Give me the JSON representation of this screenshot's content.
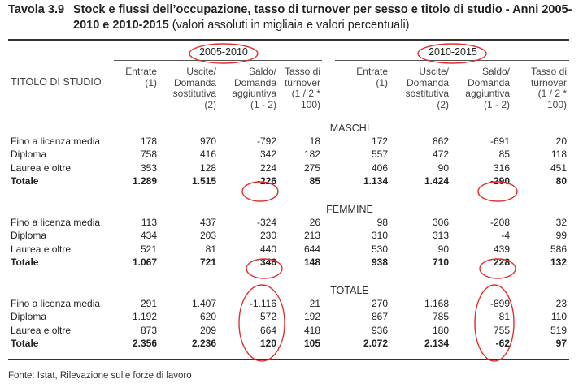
{
  "title": {
    "label": "Tavola 3.9",
    "text_bold": "Stock e flussi dell’occupazione, tasso di turnover per sesso e titolo di studio - Anni 2005-2010 e 2010-2015",
    "text_normal": "(valori assoluti in migliaia e valori percentuali)"
  },
  "header": {
    "row_label": "TITOLO DI STUDIO",
    "period1": "2005-2010",
    "period2": "2010-2015",
    "columns": [
      [
        "Entrate",
        "(1)"
      ],
      [
        "Uscite/",
        "Domanda",
        "sostitutiva",
        "(2)"
      ],
      [
        "Saldo/",
        "Domanda",
        "aggiuntiva",
        "(1 - 2)"
      ],
      [
        "Tasso di",
        "turnover",
        "(1 / 2 *",
        "100)"
      ]
    ],
    "columns2": [
      [
        "Entrate",
        "(1)"
      ],
      [
        "Uscite/",
        "Domanda",
        "sostitutiva",
        "(2)"
      ],
      [
        "Saldo/",
        "Domanda",
        "aggiuntiva",
        "(1 - 2)"
      ],
      [
        "Tasso di",
        "turnover",
        "(1 / 2 *",
        "100)"
      ]
    ]
  },
  "sections": [
    {
      "name": "MASCHI",
      "rows": [
        {
          "label": "Fino a licenza media",
          "values": [
            "178",
            "970",
            "-792",
            "18",
            "172",
            "862",
            "-691",
            "20"
          ],
          "bold": false
        },
        {
          "label": "Diploma",
          "values": [
            "758",
            "416",
            "342",
            "182",
            "557",
            "472",
            "85",
            "118"
          ],
          "bold": false
        },
        {
          "label": "Laurea e oltre",
          "values": [
            "353",
            "128",
            "224",
            "275",
            "406",
            "90",
            "316",
            "451"
          ],
          "bold": false
        },
        {
          "label": "Totale",
          "values": [
            "1.289",
            "1.515",
            "-226",
            "85",
            "1.134",
            "1.424",
            "-290",
            "80"
          ],
          "bold": true
        }
      ]
    },
    {
      "name": "FEMMINE",
      "rows": [
        {
          "label": "Fino a licenza media",
          "values": [
            "113",
            "437",
            "-324",
            "26",
            "98",
            "306",
            "-208",
            "32"
          ],
          "bold": false
        },
        {
          "label": "Diploma",
          "values": [
            "434",
            "203",
            "230",
            "213",
            "310",
            "313",
            "-4",
            "99"
          ],
          "bold": false
        },
        {
          "label": "Laurea e oltre",
          "values": [
            "521",
            "81",
            "440",
            "644",
            "530",
            "90",
            "439",
            "586"
          ],
          "bold": false
        },
        {
          "label": "Totale",
          "values": [
            "1.067",
            "721",
            "346",
            "148",
            "938",
            "710",
            "228",
            "132"
          ],
          "bold": true
        }
      ]
    },
    {
      "name": "TOTALE",
      "rows": [
        {
          "label": "Fino a licenza media",
          "values": [
            "291",
            "1.407",
            "-1.116",
            "21",
            "270",
            "1.168",
            "-899",
            "23"
          ],
          "bold": false
        },
        {
          "label": "Diploma",
          "values": [
            "1.192",
            "620",
            "572",
            "192",
            "867",
            "785",
            "81",
            "110"
          ],
          "bold": false
        },
        {
          "label": "Laurea e oltre",
          "values": [
            "873",
            "209",
            "664",
            "418",
            "936",
            "180",
            "755",
            "519"
          ],
          "bold": false
        },
        {
          "label": "Totale",
          "values": [
            "2.356",
            "2.236",
            "120",
            "105",
            "2.072",
            "2.134",
            "-62",
            "97"
          ],
          "bold": true
        }
      ]
    }
  ],
  "footer": "Fonte: Istat, Rilevazione sulle forze di lavoro",
  "colors": {
    "annotation": "#e03030",
    "rule": "#333333"
  }
}
